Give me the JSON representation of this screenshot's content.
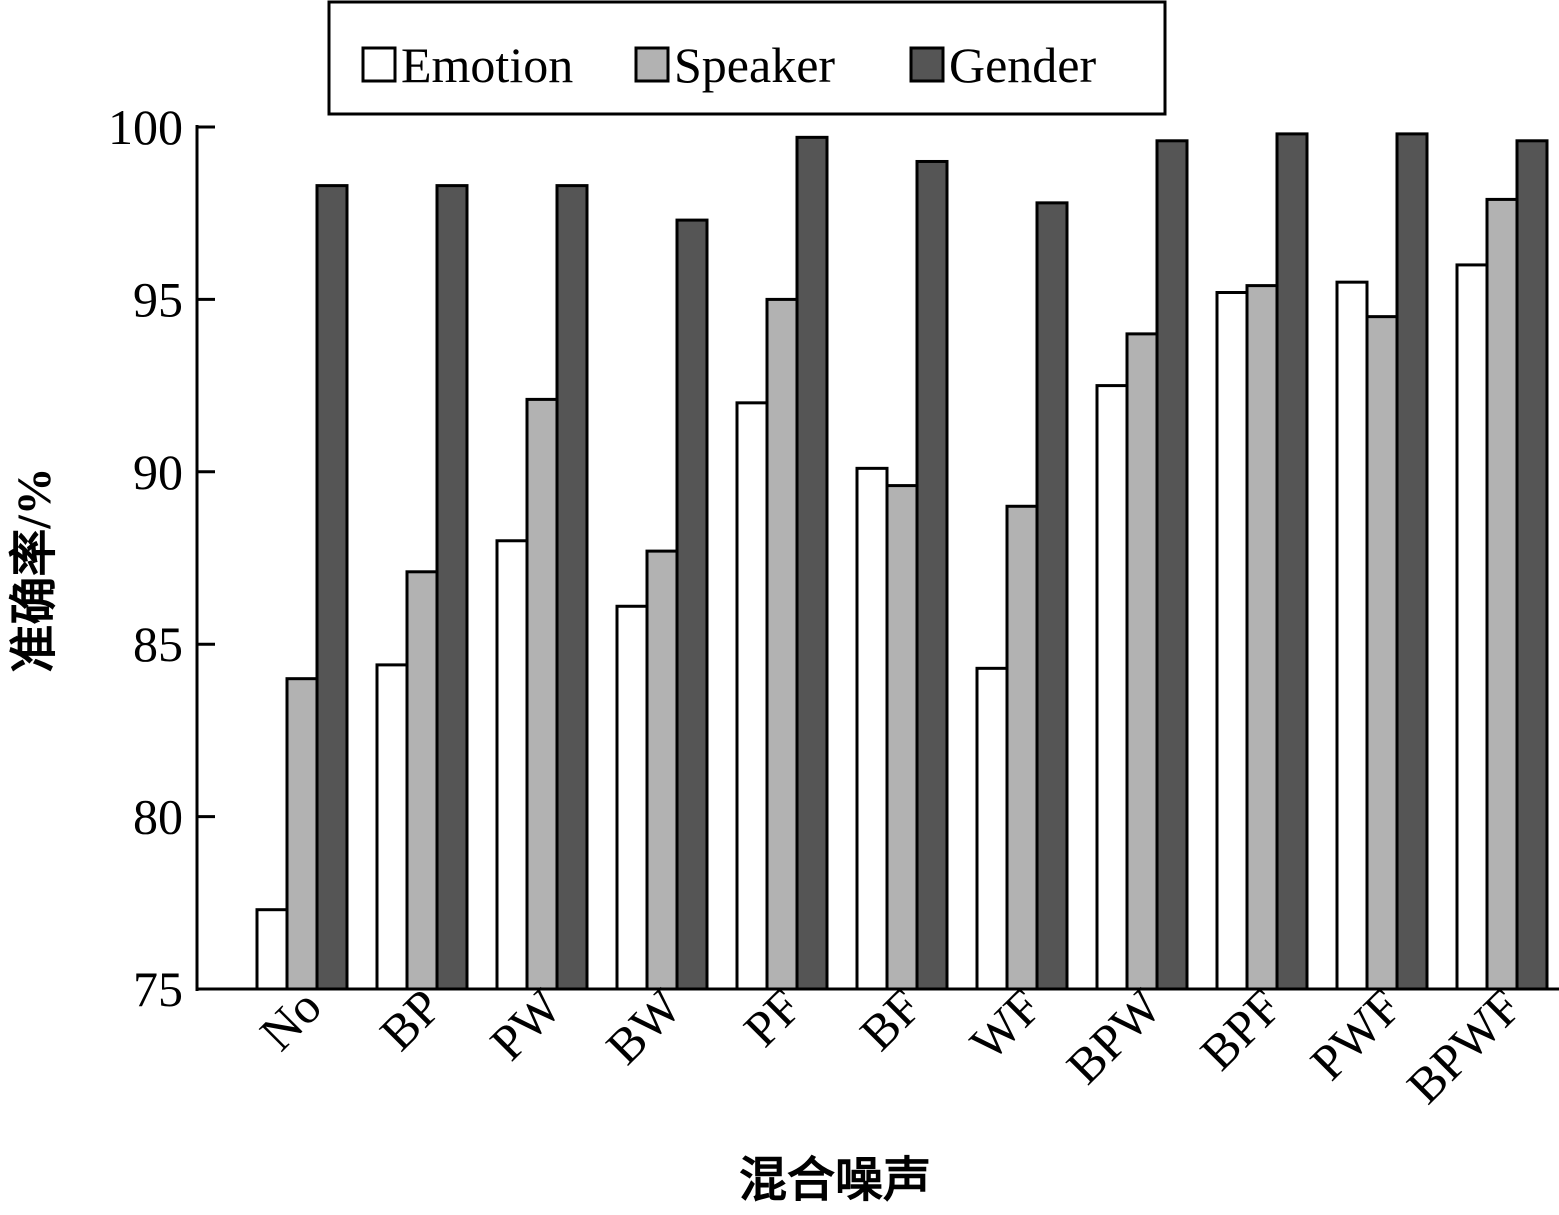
{
  "chart_data": {
    "type": "bar",
    "title": "",
    "xlabel": "混合噪声",
    "ylabel": "准确率/%",
    "ylim": [
      75,
      100
    ],
    "yticks": [
      75,
      80,
      85,
      90,
      95,
      100
    ],
    "grid": false,
    "legend_position": "top",
    "categories": [
      "No",
      "BP",
      "PW",
      "BW",
      "PF",
      "BF",
      "WF",
      "BPW",
      "BPF",
      "PWF",
      "BPWF"
    ],
    "series": [
      {
        "name": "Emotion",
        "color": "#ffffff",
        "values": [
          77.3,
          84.4,
          88.0,
          86.1,
          92.0,
          90.1,
          84.3,
          92.5,
          95.2,
          95.5,
          96.0
        ]
      },
      {
        "name": "Speaker",
        "color": "#b2b2b2",
        "values": [
          84.0,
          87.1,
          92.1,
          87.7,
          95.0,
          89.6,
          89.0,
          94.0,
          95.4,
          94.5,
          97.9
        ]
      },
      {
        "name": "Gender",
        "color": "#555555",
        "values": [
          98.3,
          98.3,
          98.3,
          97.3,
          99.7,
          99.0,
          97.8,
          99.6,
          99.8,
          99.8,
          99.6
        ]
      }
    ]
  }
}
